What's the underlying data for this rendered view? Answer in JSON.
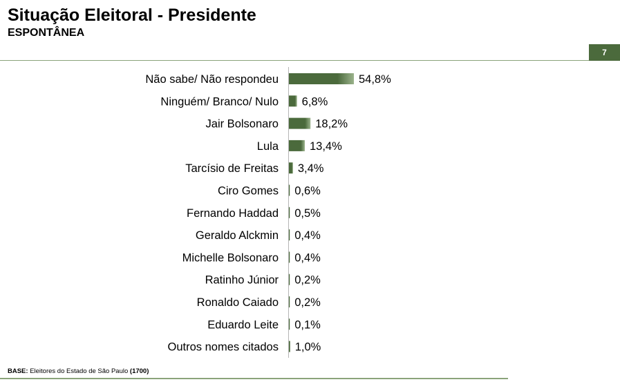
{
  "header": {
    "title": "Situação Eleitoral - Presidente",
    "subtitle": "ESPONTÂNEA",
    "page_number": "7"
  },
  "footer": {
    "base_label": "BASE:",
    "base_text": "Eleitores do Estado de São Paulo",
    "base_count": "(1700)"
  },
  "colors": {
    "bar": "#4b6a3c",
    "bar_light": "#9bb38c",
    "accent": "#4b6a3c",
    "rule": "#8aa37a"
  },
  "chart_data": {
    "type": "bar",
    "orientation": "horizontal",
    "categories": [
      "Não sabe/ Não respondeu",
      "Ninguém/ Branco/ Nulo",
      "Jair Bolsonaro",
      "Lula",
      "Tarcísio de Freitas",
      "Ciro Gomes",
      "Fernando Haddad",
      "Geraldo Alckmin",
      "Michelle Bolsonaro",
      "Ratinho Júnior",
      "Ronaldo Caiado",
      "Eduardo Leite",
      "Outros nomes citados"
    ],
    "values": [
      54.8,
      6.8,
      18.2,
      13.4,
      3.4,
      0.6,
      0.5,
      0.4,
      0.4,
      0.2,
      0.2,
      0.1,
      1.0
    ],
    "value_labels": [
      "54,8%",
      "6,8%",
      "18,2%",
      "13,4%",
      "3,4%",
      "0,6%",
      "0,5%",
      "0,4%",
      "0,4%",
      "0,2%",
      "0,2%",
      "0,1%",
      "1,0%"
    ],
    "xlim": [
      0,
      100
    ],
    "grid": false,
    "legend": "none"
  }
}
